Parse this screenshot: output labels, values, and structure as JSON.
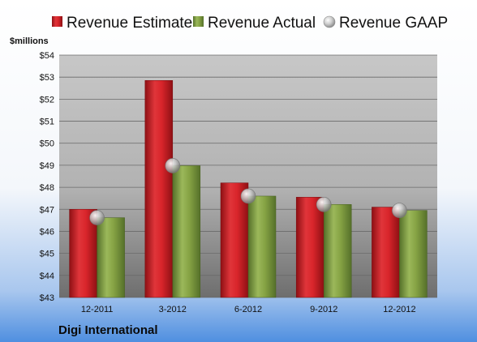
{
  "company": "Digi International",
  "unit_label": "$millions",
  "colors": {
    "estimate": "#d9252b",
    "actual": "#7f9d3b",
    "gaap": "#b8b8b8",
    "background_top": "#ffffff",
    "background_bottom": "#4f8fe0"
  },
  "chart_data": {
    "type": "bar",
    "categories": [
      "12-2011",
      "3-2012",
      "6-2012",
      "9-2012",
      "12-2012"
    ],
    "series": [
      {
        "name": "Revenue Estimate",
        "values": [
          47.0,
          52.85,
          48.2,
          47.55,
          47.1
        ]
      },
      {
        "name": "Revenue Actual",
        "values": [
          46.62,
          48.98,
          47.6,
          47.22,
          46.95
        ]
      },
      {
        "name": "Revenue GAAP",
        "values": [
          46.62,
          48.98,
          47.6,
          47.22,
          46.95
        ]
      }
    ],
    "ylim": [
      43,
      54
    ],
    "yticks": [
      "$43",
      "$44",
      "$45",
      "$46",
      "$47",
      "$48",
      "$49",
      "$50",
      "$51",
      "$52",
      "$53",
      "$54"
    ],
    "grid": true,
    "legend": "top"
  }
}
